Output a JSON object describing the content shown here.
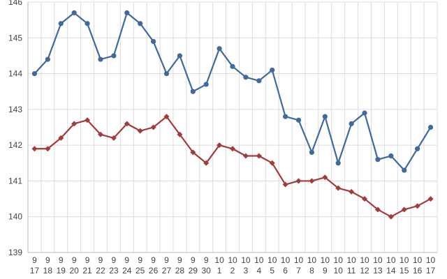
{
  "chart_data": {
    "type": "line",
    "x": [
      [
        "9",
        "17"
      ],
      [
        "9",
        "18"
      ],
      [
        "9",
        "19"
      ],
      [
        "9",
        "20"
      ],
      [
        "9",
        "21"
      ],
      [
        "9",
        "22"
      ],
      [
        "9",
        "23"
      ],
      [
        "9",
        "24"
      ],
      [
        "9",
        "25"
      ],
      [
        "9",
        "26"
      ],
      [
        "9",
        "27"
      ],
      [
        "9",
        "28"
      ],
      [
        "9",
        "29"
      ],
      [
        "9",
        "30"
      ],
      [
        "10",
        "1"
      ],
      [
        "10",
        "2"
      ],
      [
        "10",
        "3"
      ],
      [
        "10",
        "4"
      ],
      [
        "10",
        "5"
      ],
      [
        "10",
        "6"
      ],
      [
        "10",
        "7"
      ],
      [
        "10",
        "8"
      ],
      [
        "10",
        "9"
      ],
      [
        "10",
        "10"
      ],
      [
        "10",
        "11"
      ],
      [
        "10",
        "12"
      ],
      [
        "10",
        "13"
      ],
      [
        "10",
        "14"
      ],
      [
        "10",
        "15"
      ],
      [
        "10",
        "16"
      ],
      [
        "10",
        "17"
      ]
    ],
    "series": [
      {
        "color": "#3f6a9e",
        "marker": "circle",
        "values": [
          144.0,
          144.4,
          145.4,
          145.7,
          145.4,
          144.4,
          144.5,
          145.7,
          145.4,
          144.9,
          144.0,
          144.5,
          143.5,
          143.7,
          144.7,
          144.2,
          143.9,
          143.8,
          144.1,
          142.8,
          142.7,
          141.8,
          142.8,
          141.5,
          142.6,
          142.9,
          141.6,
          141.7,
          141.3,
          141.9,
          142.5
        ]
      },
      {
        "color": "#a33b3b",
        "marker": "diamond",
        "values": [
          141.9,
          141.9,
          142.2,
          142.6,
          142.7,
          142.3,
          142.2,
          142.6,
          142.4,
          142.5,
          142.8,
          142.3,
          141.8,
          141.5,
          142.0,
          141.9,
          141.7,
          141.7,
          141.5,
          140.9,
          141.0,
          141.0,
          141.1,
          140.8,
          140.7,
          140.5,
          140.2,
          140.0,
          140.2,
          140.3,
          140.5
        ]
      }
    ],
    "title": "",
    "xlabel": "",
    "ylabel": "",
    "ylim": [
      139,
      146
    ],
    "yticks": [
      139,
      140,
      141,
      142,
      143,
      144,
      145,
      146
    ],
    "grid": true,
    "legend": "none"
  }
}
